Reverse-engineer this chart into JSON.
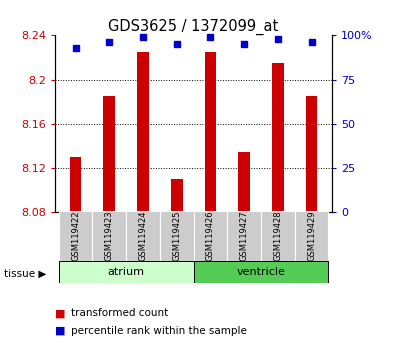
{
  "title": "GDS3625 / 1372099_at",
  "samples": [
    "GSM119422",
    "GSM119423",
    "GSM119424",
    "GSM119425",
    "GSM119426",
    "GSM119427",
    "GSM119428",
    "GSM119429"
  ],
  "red_values": [
    8.13,
    8.185,
    8.225,
    8.11,
    8.225,
    8.135,
    8.215,
    8.185
  ],
  "blue_values": [
    93,
    96,
    99,
    95,
    99,
    95,
    98,
    96
  ],
  "base_value": 8.08,
  "ylim": [
    8.08,
    8.24
  ],
  "yticks": [
    8.08,
    8.12,
    8.16,
    8.2,
    8.24
  ],
  "yticks_right": [
    0,
    25,
    50,
    75,
    100
  ],
  "groups": [
    {
      "label": "atrium",
      "start": 0,
      "end": 4,
      "color": "#ccffcc"
    },
    {
      "label": "ventricle",
      "start": 4,
      "end": 8,
      "color": "#55cc55"
    }
  ],
  "bar_color": "#cc0000",
  "blue_color": "#0000cc",
  "bg_color": "#ffffff",
  "tick_label_color_left": "#cc0000",
  "tick_label_color_right": "#0000cc",
  "legend_red_label": "transformed count",
  "legend_blue_label": "percentile rank within the sample",
  "tissue_label": "tissue",
  "bar_width": 0.35,
  "group_panel_color": "#cccccc"
}
